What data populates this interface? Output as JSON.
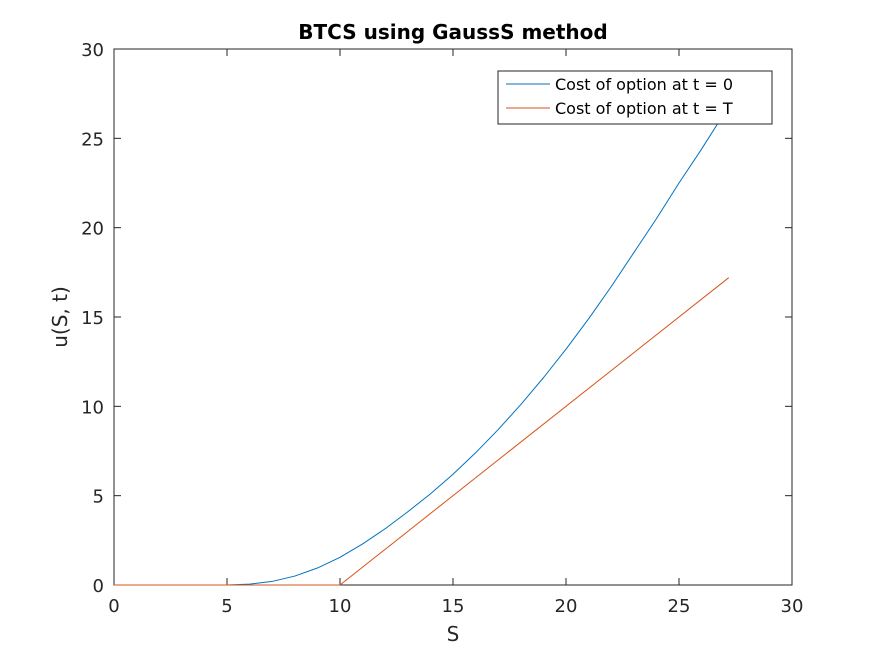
{
  "chart_data": {
    "type": "line",
    "title": "BTCS using GaussS method",
    "xlabel": "S",
    "ylabel": "u(S, t)",
    "xlim": [
      0,
      30
    ],
    "ylim": [
      0,
      30
    ],
    "xticks": [
      0,
      5,
      10,
      15,
      20,
      25,
      30
    ],
    "yticks": [
      0,
      5,
      10,
      15,
      20,
      25,
      30
    ],
    "grid": false,
    "legend_position": "top-right",
    "series": [
      {
        "name": "Cost of option at t = 0",
        "color": "#0072bd",
        "x": [
          0,
          2,
          4,
          5,
          6,
          7,
          8,
          9,
          10,
          11,
          12,
          13,
          14,
          15,
          16,
          17,
          18,
          19,
          20,
          21,
          22,
          23,
          24,
          25,
          26,
          27.2
        ],
        "y": [
          0,
          0,
          0,
          0,
          0.05,
          0.2,
          0.5,
          0.95,
          1.55,
          2.3,
          3.15,
          4.1,
          5.1,
          6.2,
          7.4,
          8.7,
          10.1,
          11.6,
          13.2,
          14.9,
          16.7,
          18.6,
          20.5,
          22.5,
          24.4,
          26.8
        ]
      },
      {
        "name": "Cost of option at t = T",
        "color": "#d95319",
        "x": [
          0,
          10,
          27.2
        ],
        "y": [
          0,
          0,
          17.2
        ]
      }
    ]
  }
}
